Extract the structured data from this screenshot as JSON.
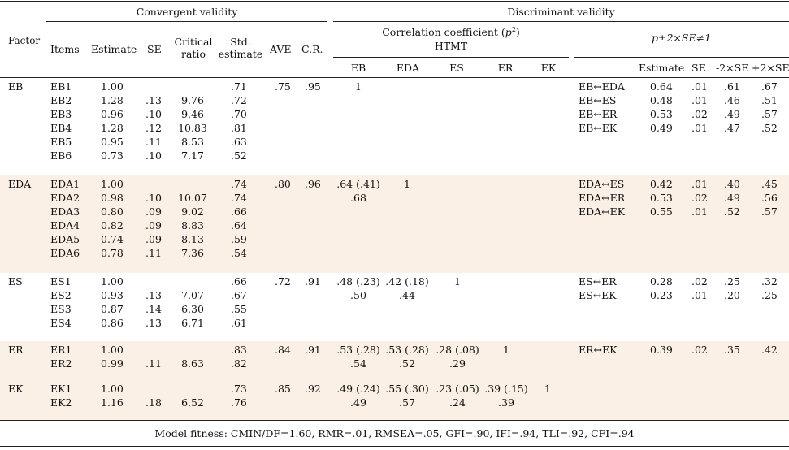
{
  "header": {
    "factor": "Factor",
    "convergent": "Convergent validity",
    "discriminant": "Discriminant validity",
    "items": "Items",
    "estimate": "Estimate",
    "se": "SE",
    "cr_ratio_1": "Critical",
    "cr_ratio_2": "ratio",
    "std_1": "Std.",
    "std_2": "estimate",
    "ave": "AVE",
    "cr": "C.R.",
    "corr_title_prefix": "Correlation coefficient (",
    "corr_title_var": "p",
    "corr_title_sup": "2",
    "corr_title_suffix": ")",
    "htmt": "HTMT",
    "pm_title": "p±2×SE≠1",
    "corr_cols": [
      "EB",
      "EDA",
      "ES",
      "ER",
      "EK"
    ],
    "right_estimate": "Estimate",
    "right_se": "SE",
    "right_m2se": "-2×SE",
    "right_p2se": "+2×SE"
  },
  "groups": [
    {
      "factor": "EB",
      "items": [
        "EB1",
        "EB2",
        "EB3",
        "EB4",
        "EB5",
        "EB6"
      ],
      "estimate": [
        "1.00",
        "1.28",
        "0.96",
        "1.28",
        "0.95",
        "0.73"
      ],
      "se": [
        "",
        ".13",
        ".10",
        ".12",
        ".11",
        ".10"
      ],
      "critical_ratio": [
        "",
        "9.76",
        "9.46",
        "10.83",
        "8.53",
        "7.17"
      ],
      "std": [
        ".71",
        ".72",
        ".70",
        ".81",
        ".63",
        ".52"
      ],
      "ave": ".75",
      "cr": ".95",
      "corr": [
        [
          "1"
        ],
        [],
        [],
        [],
        []
      ],
      "pairs": [
        "EB↔EDA",
        "EB↔ES",
        "EB↔ER",
        "EB↔EK"
      ],
      "pair_est": [
        "0.64",
        "0.48",
        "0.53",
        "0.49"
      ],
      "pair_se": [
        ".01",
        ".01",
        ".02",
        ".01"
      ],
      "pair_m2se": [
        ".61",
        ".46",
        ".49",
        ".47"
      ],
      "pair_p2se": [
        ".67",
        ".51",
        ".57",
        ".52"
      ]
    },
    {
      "factor": "EDA",
      "items": [
        "EDA1",
        "EDA2",
        "EDA3",
        "EDA4",
        "EDA5",
        "EDA6"
      ],
      "estimate": [
        "1.00",
        "0.98",
        "0.80",
        "0.82",
        "0.74",
        "0.78"
      ],
      "se": [
        "",
        ".10",
        ".09",
        ".09",
        ".09",
        ".11"
      ],
      "critical_ratio": [
        "",
        "10.07",
        "9.02",
        "8.83",
        "8.13",
        "7.36"
      ],
      "std": [
        ".74",
        ".74",
        ".66",
        ".64",
        ".59",
        ".54"
      ],
      "ave": ".80",
      "cr": ".96",
      "corr": [
        [
          ".64 (.41)",
          ".68"
        ],
        [
          "1"
        ],
        [],
        [],
        []
      ],
      "pairs": [
        "EDA↔ES",
        "EDA↔ER",
        "EDA↔EK"
      ],
      "pair_est": [
        "0.42",
        "0.53",
        "0.55"
      ],
      "pair_se": [
        ".01",
        ".02",
        ".01"
      ],
      "pair_m2se": [
        ".40",
        ".49",
        ".52"
      ],
      "pair_p2se": [
        ".45",
        ".56",
        ".57"
      ]
    },
    {
      "factor": "ES",
      "items": [
        "ES1",
        "ES2",
        "ES3",
        "ES4"
      ],
      "estimate": [
        "1.00",
        "0.93",
        "0.87",
        "0.86"
      ],
      "se": [
        "",
        ".13",
        ".14",
        ".13"
      ],
      "critical_ratio": [
        "",
        "7.07",
        "6.30",
        "6.71"
      ],
      "std": [
        ".66",
        ".67",
        ".55",
        ".61"
      ],
      "ave": ".72",
      "cr": ".91",
      "corr": [
        [
          ".48 (.23)",
          ".50"
        ],
        [
          ".42 (.18)",
          ".44"
        ],
        [
          "1"
        ],
        [],
        []
      ],
      "pairs": [
        "ES↔ER",
        "ES↔EK"
      ],
      "pair_est": [
        "0.28",
        "0.23"
      ],
      "pair_se": [
        ".02",
        ".01"
      ],
      "pair_m2se": [
        ".25",
        ".20"
      ],
      "pair_p2se": [
        ".32",
        ".25"
      ]
    },
    {
      "factor": "ER",
      "items": [
        "ER1",
        "ER2"
      ],
      "estimate": [
        "1.00",
        "0.99"
      ],
      "se": [
        "",
        ".11"
      ],
      "critical_ratio": [
        "",
        "8.63"
      ],
      "std": [
        ".83",
        ".82"
      ],
      "ave": ".84",
      "cr": ".91",
      "corr": [
        [
          ".53 (.28)",
          ".54"
        ],
        [
          ".53 (.28)",
          ".52"
        ],
        [
          ".28 (.08)",
          ".29"
        ],
        [
          "1"
        ],
        []
      ],
      "pairs": [
        "ER↔EK"
      ],
      "pair_est": [
        "0.39"
      ],
      "pair_se": [
        ".02"
      ],
      "pair_m2se": [
        ".35"
      ],
      "pair_p2se": [
        ".42"
      ]
    },
    {
      "factor": "EK",
      "items": [
        "EK1",
        "EK2"
      ],
      "estimate": [
        "1.00",
        "1.16"
      ],
      "se": [
        "",
        ".18"
      ],
      "critical_ratio": [
        "",
        "6.52"
      ],
      "std": [
        ".73",
        ".76"
      ],
      "ave": ".85",
      "cr": ".92",
      "corr": [
        [
          ".49 (.24)",
          ".49"
        ],
        [
          ".55 (.30)",
          ".57"
        ],
        [
          ".23 (.05)",
          ".24"
        ],
        [
          ".39 (.15)",
          ".39"
        ],
        [
          "1"
        ]
      ],
      "pairs": [],
      "pair_est": [],
      "pair_se": [],
      "pair_m2se": [],
      "pair_p2se": []
    }
  ],
  "footer": "Model fitness: CMIN/DF=1.60, RMR=.01, RMSEA=.05, GFI=.90, IFI=.94, TLI=.92, CFI=.94"
}
